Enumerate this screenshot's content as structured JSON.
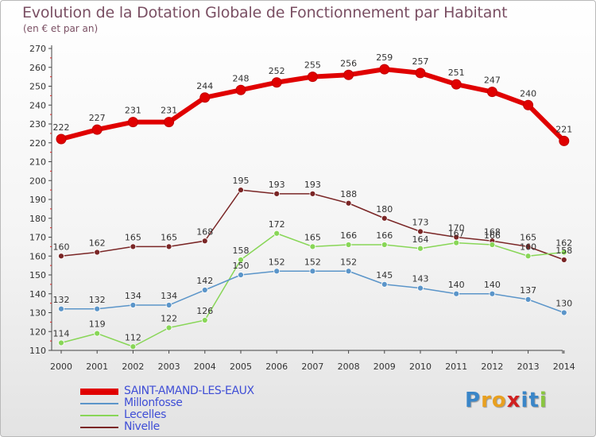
{
  "title": "Evolution de la Dotation Globale de Fonctionnement par Habitant",
  "subtitle": "(en € et par an)",
  "logo": {
    "text": "Proxiti",
    "letters": [
      {
        "ch": "P",
        "color": "#3a86c8"
      },
      {
        "ch": "r",
        "color": "#e8a020"
      },
      {
        "ch": "o",
        "color": "#e8a020"
      },
      {
        "ch": "x",
        "color": "#d02020"
      },
      {
        "ch": "i",
        "color": "#3a86c8"
      },
      {
        "ch": "t",
        "color": "#3a86c8"
      },
      {
        "ch": "i",
        "color": "#8ac640"
      }
    ]
  },
  "chart_data": {
    "type": "line",
    "title": "Evolution de la Dotation Globale de Fonctionnement par Habitant",
    "subtitle": "(en € et par an)",
    "x": [
      "2000",
      "2001",
      "2002",
      "2003",
      "2004",
      "2005",
      "2006",
      "2007",
      "2008",
      "2009",
      "2010",
      "2011",
      "2012",
      "2013",
      "2014"
    ],
    "ylim": [
      110,
      270
    ],
    "yticks": [
      110,
      120,
      130,
      140,
      150,
      160,
      170,
      180,
      190,
      200,
      210,
      220,
      230,
      240,
      250,
      260,
      270
    ],
    "grid": false,
    "legend_position": "bottom-left",
    "series": [
      {
        "name": "SAINT-AMAND-LES-EAUX",
        "color": "#e00000",
        "values": [
          222,
          227,
          231,
          231,
          244,
          248,
          252,
          255,
          256,
          259,
          257,
          251,
          247,
          240,
          221
        ]
      },
      {
        "name": "Millonfosse",
        "color": "#5b95c9",
        "values": [
          132,
          132,
          134,
          134,
          142,
          150,
          152,
          152,
          152,
          145,
          143,
          140,
          140,
          137,
          130
        ]
      },
      {
        "name": "Lecelles",
        "color": "#88d657",
        "values": [
          114,
          119,
          112,
          122,
          126,
          158,
          172,
          165,
          166,
          166,
          164,
          167,
          166,
          160,
          162
        ]
      },
      {
        "name": "Nivelle",
        "color": "#7a2626",
        "values": [
          160,
          162,
          165,
          165,
          168,
          195,
          193,
          193,
          188,
          180,
          173,
          170,
          168,
          165,
          158
        ]
      }
    ]
  }
}
